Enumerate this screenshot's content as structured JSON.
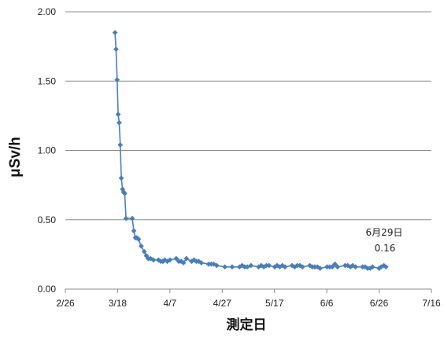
{
  "chart_data": {
    "type": "line",
    "ylabel": "μSv/h",
    "xlabel": "測定日",
    "ylim": [
      0,
      2
    ],
    "yticks": [
      "0.00",
      "0.50",
      "1.00",
      "1.50",
      "2.00"
    ],
    "ytick_values": [
      0,
      0.5,
      1.0,
      1.5,
      2.0
    ],
    "xlim_days": [
      0,
      140
    ],
    "xticks": [
      "2/26",
      "3/18",
      "4/7",
      "4/27",
      "5/17",
      "6/6",
      "6/26",
      "7/16"
    ],
    "xtick_days": [
      0,
      20,
      40,
      60,
      80,
      100,
      120,
      140
    ],
    "grid": "horizontal",
    "series_color": "#4a7ebb",
    "annotation": {
      "date_label": "6月29日",
      "value_label": "0.16"
    },
    "series": [
      {
        "x": [
          19.0,
          19.4,
          19.8,
          20.2,
          20.6,
          21.0,
          21.4,
          21.9,
          22.3,
          22.7,
          23.2,
          25.6,
          26.2,
          26.8,
          27.3,
          28.0,
          29.0,
          30.2,
          31.0,
          31.7,
          32.6,
          33.7,
          35.6,
          36.5,
          37.3,
          38.0,
          39.0,
          40.0,
          42.4,
          43.4,
          44.3,
          45.2,
          46.3,
          48.3,
          49.2,
          50.1,
          51.0,
          52.0,
          54.8,
          55.8,
          56.8,
          57.9,
          61.0,
          63.8,
          66.6,
          67.6,
          68.6,
          69.6,
          71.0,
          73.9,
          74.9,
          75.9,
          76.9,
          77.9,
          80.1,
          81.0,
          82.0,
          83.0,
          84.0,
          86.7,
          87.7,
          88.7,
          89.7,
          90.7,
          93.5,
          94.5,
          95.4,
          96.4,
          97.4,
          100.1,
          101.1,
          102.1,
          103.1,
          104.1,
          107.0,
          108.0,
          109.0,
          109.9,
          111.0,
          113.7,
          114.6,
          115.6,
          116.6,
          117.5,
          120.0,
          120.8,
          121.8,
          122.6
        ],
        "y": [
          1.85,
          1.73,
          1.51,
          1.26,
          1.2,
          1.04,
          0.8,
          0.72,
          0.7,
          0.69,
          0.51,
          0.51,
          0.42,
          0.37,
          0.37,
          0.36,
          0.31,
          0.27,
          0.24,
          0.22,
          0.22,
          0.21,
          0.21,
          0.2,
          0.2,
          0.21,
          0.2,
          0.21,
          0.22,
          0.2,
          0.2,
          0.19,
          0.22,
          0.2,
          0.21,
          0.2,
          0.2,
          0.19,
          0.18,
          0.18,
          0.18,
          0.17,
          0.16,
          0.16,
          0.16,
          0.17,
          0.16,
          0.16,
          0.17,
          0.16,
          0.17,
          0.16,
          0.17,
          0.17,
          0.16,
          0.17,
          0.16,
          0.17,
          0.16,
          0.17,
          0.16,
          0.17,
          0.17,
          0.16,
          0.17,
          0.16,
          0.16,
          0.16,
          0.15,
          0.16,
          0.16,
          0.16,
          0.18,
          0.16,
          0.17,
          0.17,
          0.16,
          0.17,
          0.16,
          0.16,
          0.16,
          0.15,
          0.15,
          0.16,
          0.15,
          0.16,
          0.17,
          0.16
        ]
      }
    ]
  }
}
